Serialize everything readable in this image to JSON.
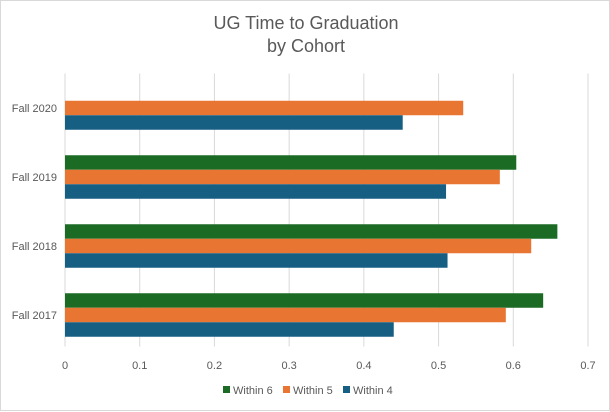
{
  "chart_data": {
    "type": "bar",
    "orientation": "horizontal",
    "title_line1": "UG Time to Graduation",
    "title_line2": "by Cohort",
    "categories": [
      "Fall 2017",
      "Fall 2018",
      "Fall 2019",
      "Fall 2020"
    ],
    "series": [
      {
        "name": "Within 6",
        "color": "#1b6b25",
        "values": [
          0.64,
          0.659,
          0.604,
          null
        ]
      },
      {
        "name": "Within 5",
        "color": "#e97532",
        "values": [
          0.59,
          0.624,
          0.582,
          0.533
        ]
      },
      {
        "name": "Within 4",
        "color": "#165f83",
        "values": [
          0.44,
          0.512,
          0.51,
          0.452
        ]
      }
    ],
    "xlim": [
      0,
      0.7
    ],
    "xticks": [
      "0",
      "0.1",
      "0.2",
      "0.3",
      "0.4",
      "0.5",
      "0.6",
      "0.7"
    ],
    "grid": true,
    "legend_position": "bottom"
  }
}
